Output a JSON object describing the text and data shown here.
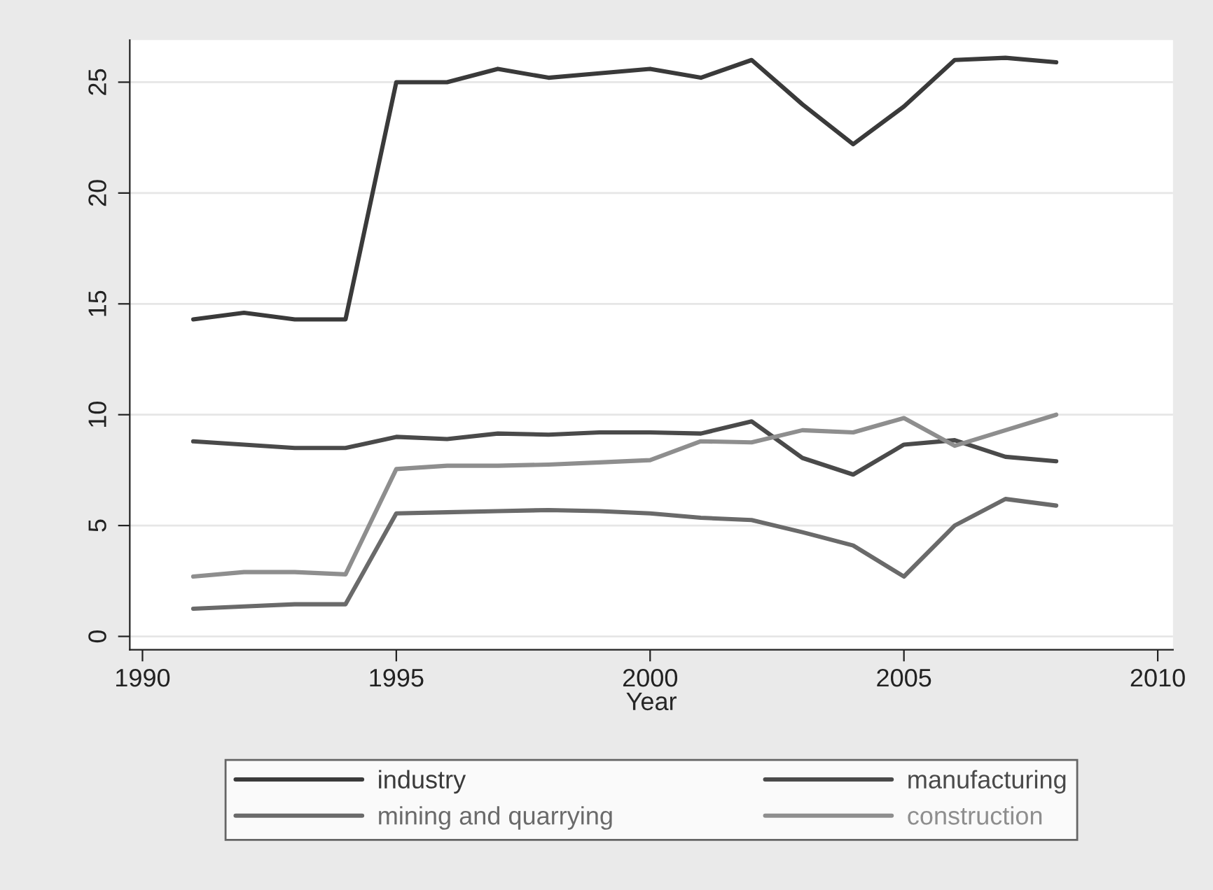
{
  "chart_data": {
    "type": "line",
    "xlabel": "Year",
    "x": [
      1991,
      1992,
      1993,
      1994,
      1995,
      1996,
      1997,
      1998,
      1999,
      2000,
      2001,
      2002,
      2003,
      2004,
      2005,
      2006,
      2007,
      2008
    ],
    "series": [
      {
        "name": "industry",
        "color": "#3a3a3a",
        "values": [
          14.3,
          14.6,
          14.3,
          14.3,
          25.0,
          25.0,
          25.6,
          25.2,
          25.4,
          25.6,
          25.2,
          26.0,
          24.0,
          22.2,
          23.9,
          26.0,
          26.1,
          25.9
        ]
      },
      {
        "name": "manufacturing",
        "color": "#4a4a4a",
        "values": [
          8.8,
          8.65,
          8.5,
          8.5,
          9.0,
          8.9,
          9.15,
          9.1,
          9.2,
          9.2,
          9.15,
          9.7,
          8.05,
          7.3,
          8.65,
          8.85,
          8.1,
          7.9
        ]
      },
      {
        "name": "mining and quarrying",
        "color": "#6a6a6a",
        "values": [
          1.25,
          1.35,
          1.45,
          1.45,
          5.55,
          5.6,
          5.65,
          5.7,
          5.65,
          5.55,
          5.35,
          5.25,
          4.7,
          4.1,
          2.7,
          5.0,
          6.2,
          5.9
        ]
      },
      {
        "name": "construction",
        "color": "#8e8e8e",
        "values": [
          2.7,
          2.9,
          2.9,
          2.8,
          7.55,
          7.7,
          7.7,
          7.75,
          7.85,
          7.95,
          8.8,
          8.75,
          9.3,
          9.2,
          9.85,
          8.6,
          9.3,
          10.0
        ]
      }
    ],
    "xlim": [
      1989.75,
      2010.3
    ],
    "xticks": [
      1990,
      1995,
      2000,
      2005,
      2010
    ],
    "ylim": [
      -0.6,
      26.9
    ],
    "yticks": [
      0,
      5,
      10,
      15,
      20,
      25
    ],
    "grid": "y",
    "legend": "bottom",
    "line_style": "solid",
    "marker": "none"
  }
}
